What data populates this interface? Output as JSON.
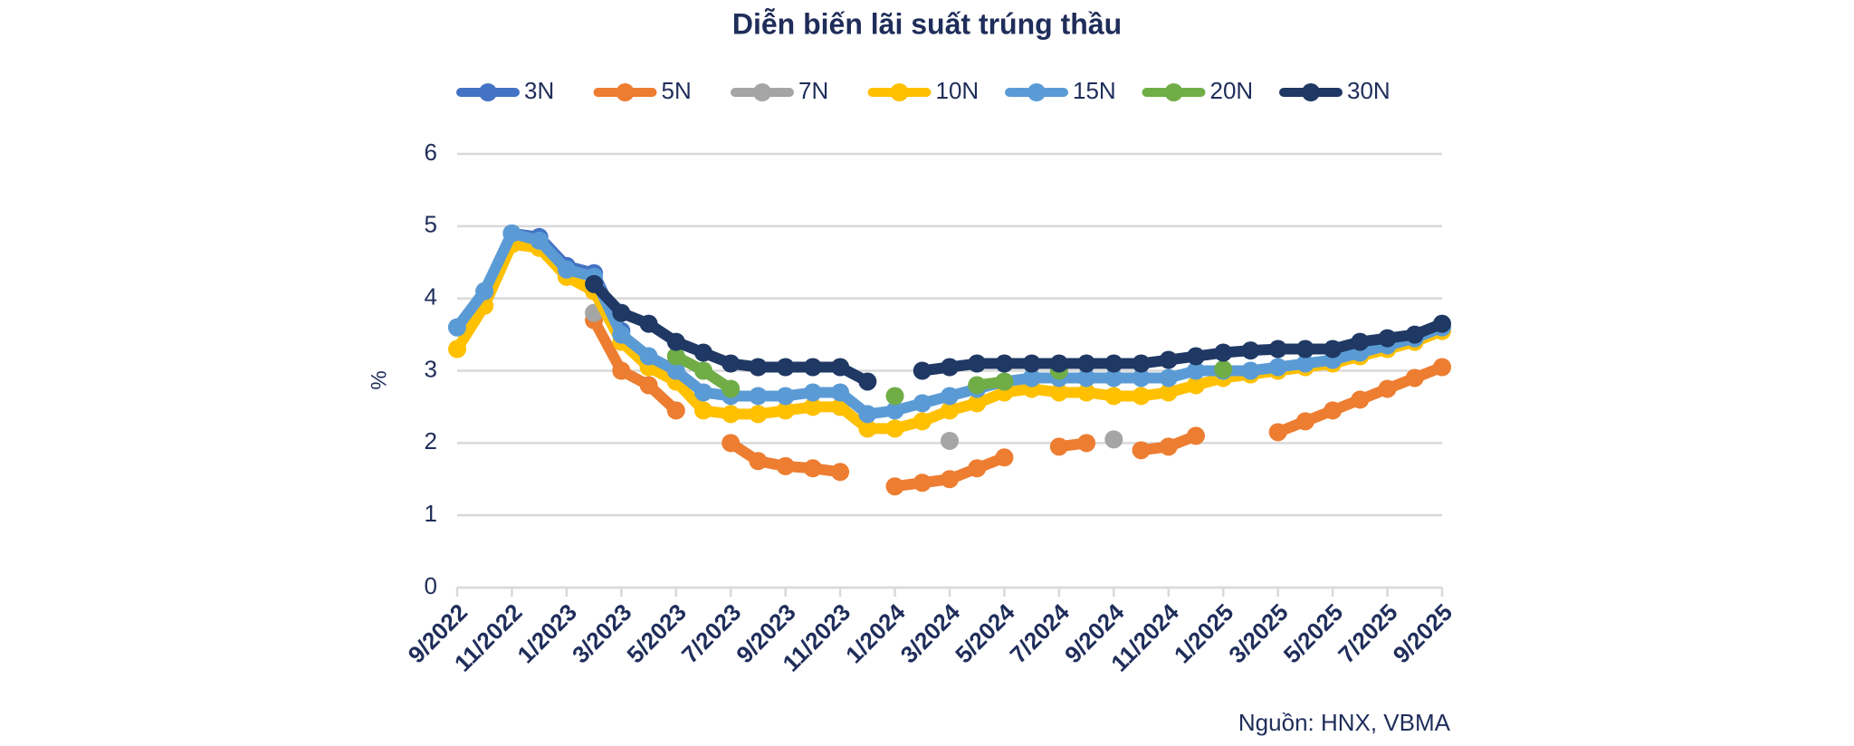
{
  "chart_data": {
    "type": "line",
    "title": "Diễn biến lãi suất trúng thầu",
    "y_label": "%",
    "source": "Nguồn: HNX, VBMA",
    "legend": "top",
    "grid": true,
    "markers": true,
    "categories": [
      "9/2022",
      null,
      "11/2022",
      null,
      "1/2023",
      null,
      "3/2023",
      null,
      "5/2023",
      null,
      "7/2023",
      null,
      "9/2023",
      null,
      "11/2023",
      null,
      "1/2024",
      null,
      "3/2024",
      null,
      "5/2024",
      null,
      "7/2024",
      null,
      "9/2024",
      null,
      "11/2024",
      null,
      "1/2025",
      null,
      "3/2025",
      null,
      "5/2025",
      null,
      "7/2025",
      null,
      "9/2025"
    ],
    "ylim": [
      0,
      6
    ],
    "yticks": [
      0,
      1,
      2,
      3,
      4,
      5,
      6
    ],
    "series": [
      {
        "name": "3N",
        "color": "#4472c4",
        "values": [
          3.6,
          4.1,
          4.9,
          4.85,
          4.45,
          4.35,
          3.55,
          null,
          null,
          null,
          null,
          null,
          null,
          null,
          null,
          null,
          null,
          null,
          null,
          null,
          null,
          null,
          null,
          null,
          null,
          null,
          null,
          null,
          null,
          null,
          null,
          null,
          null,
          null,
          null,
          null,
          null
        ]
      },
      {
        "name": "5N",
        "color": "#ed7d31",
        "values": [
          null,
          null,
          null,
          null,
          null,
          3.7,
          3.0,
          2.8,
          2.45,
          null,
          2.0,
          1.75,
          1.68,
          1.65,
          1.6,
          null,
          1.4,
          1.45,
          1.5,
          1.65,
          1.8,
          null,
          1.95,
          2.0,
          null,
          1.9,
          1.95,
          2.1,
          null,
          null,
          2.15,
          2.3,
          2.45,
          2.6,
          2.75,
          2.9,
          3.05
        ]
      },
      {
        "name": "7N",
        "color": "#a5a5a5",
        "values": [
          null,
          null,
          null,
          null,
          null,
          3.8,
          null,
          null,
          null,
          null,
          null,
          null,
          null,
          null,
          null,
          null,
          null,
          null,
          2.03,
          null,
          null,
          null,
          null,
          null,
          2.05,
          null,
          null,
          null,
          null,
          null,
          null,
          null,
          null,
          null,
          null,
          null,
          null
        ]
      },
      {
        "name": "10N",
        "color": "#ffc000",
        "values": [
          3.3,
          3.9,
          4.75,
          4.7,
          4.3,
          4.1,
          3.4,
          3.05,
          2.85,
          2.45,
          2.4,
          2.4,
          2.45,
          2.5,
          2.5,
          2.2,
          2.2,
          2.3,
          2.45,
          2.55,
          2.7,
          2.75,
          2.7,
          2.7,
          2.65,
          2.65,
          2.7,
          2.8,
          2.9,
          2.95,
          3.0,
          3.05,
          3.1,
          3.2,
          3.3,
          3.4,
          3.55
        ]
      },
      {
        "name": "15N",
        "color": "#5b9bd5",
        "values": [
          3.6,
          4.1,
          4.9,
          4.8,
          4.4,
          4.3,
          3.5,
          3.2,
          3.0,
          2.7,
          2.65,
          2.65,
          2.65,
          2.7,
          2.7,
          2.4,
          2.45,
          2.55,
          2.65,
          2.75,
          2.85,
          2.9,
          2.9,
          2.9,
          2.9,
          2.9,
          2.9,
          3.0,
          3.0,
          3.0,
          3.05,
          3.1,
          3.15,
          3.25,
          3.35,
          3.45,
          3.6
        ]
      },
      {
        "name": "20N",
        "color": "#70ad47",
        "values": [
          null,
          null,
          null,
          null,
          null,
          null,
          null,
          null,
          3.2,
          3.0,
          2.75,
          null,
          null,
          null,
          null,
          null,
          2.65,
          null,
          null,
          2.8,
          2.85,
          null,
          3.0,
          null,
          null,
          null,
          null,
          null,
          3.02,
          null,
          null,
          null,
          null,
          null,
          null,
          null,
          null
        ]
      },
      {
        "name": "30N",
        "color": "#1f3864",
        "values": [
          null,
          null,
          null,
          null,
          null,
          4.2,
          3.8,
          3.65,
          3.4,
          3.25,
          3.1,
          3.05,
          3.05,
          3.05,
          3.05,
          2.85,
          null,
          3.0,
          3.05,
          3.1,
          3.1,
          3.1,
          3.1,
          3.1,
          3.1,
          3.1,
          3.15,
          3.2,
          3.25,
          3.28,
          3.3,
          3.3,
          3.3,
          3.4,
          3.45,
          3.5,
          3.65
        ]
      }
    ]
  }
}
